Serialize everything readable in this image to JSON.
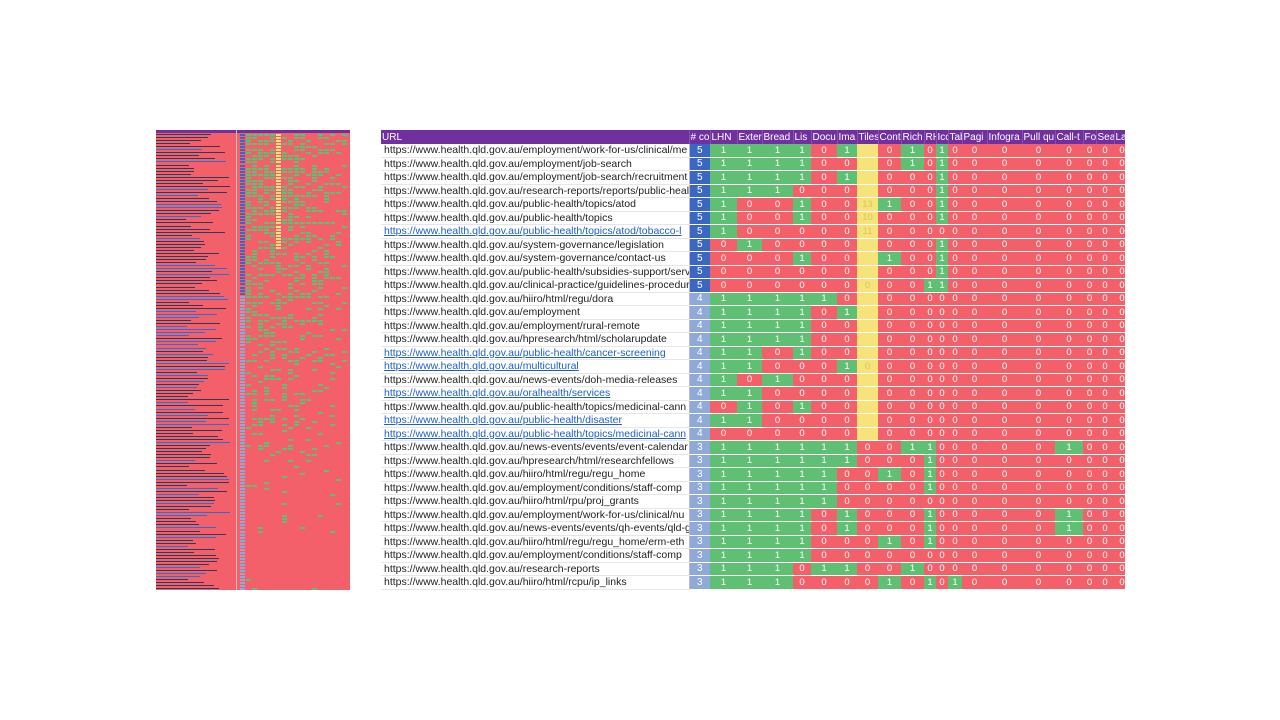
{
  "headers": [
    "URL",
    "# co",
    "LHN",
    "Exter",
    "Bread",
    "Lis",
    "Docu",
    "Ima",
    "Tiles",
    "Cont",
    "Rich",
    "RH",
    "Icc",
    "Tab",
    "Pagi",
    "Infogra",
    "Pull qu",
    "Call-t",
    "Fo",
    "Sear",
    "Lab"
  ],
  "colors": {
    "header": "#7030a0",
    "green": "#5fbf72",
    "red": "#f4606a",
    "yellow": "#f6e37a",
    "count_dark": "#3b67c4",
    "count_light": "#8fa9d9"
  },
  "rows": [
    {
      "url": "https://www.health.qld.gov.au/employment/work-for-us/clinical/me",
      "count": "5",
      "link": false,
      "vals": [
        "1",
        "1",
        "1",
        "1",
        "0",
        "1",
        "",
        "0",
        "1",
        "0",
        "1",
        "0",
        "0",
        "0",
        "0",
        "0",
        "0",
        "0",
        "0",
        "0"
      ]
    },
    {
      "url": "https://www.health.qld.gov.au/employment/job-search",
      "count": "5",
      "link": false,
      "vals": [
        "1",
        "1",
        "1",
        "1",
        "0",
        "0",
        "",
        "0",
        "1",
        "0",
        "1",
        "0",
        "0",
        "0",
        "0",
        "0",
        "0",
        "0",
        "0",
        "0"
      ]
    },
    {
      "url": "https://www.health.qld.gov.au/employment/job-search/recruitment",
      "count": "5",
      "link": false,
      "vals": [
        "1",
        "1",
        "1",
        "1",
        "0",
        "1",
        "",
        "0",
        "0",
        "0",
        "1",
        "0",
        "0",
        "0",
        "0",
        "0",
        "0",
        "0",
        "0",
        "0"
      ]
    },
    {
      "url": "https://www.health.qld.gov.au/research-reports/reports/public-heal",
      "count": "5",
      "link": false,
      "vals": [
        "1",
        "1",
        "1",
        "0",
        "0",
        "0",
        "",
        "0",
        "0",
        "0",
        "1",
        "0",
        "0",
        "0",
        "0",
        "0",
        "0",
        "0",
        "0",
        "0"
      ]
    },
    {
      "url": "https://www.health.qld.gov.au/public-health/topics/atod",
      "count": "5",
      "link": false,
      "vals": [
        "1",
        "0",
        "0",
        "1",
        "0",
        "0",
        "13",
        "1",
        "0",
        "0",
        "1",
        "0",
        "0",
        "0",
        "0",
        "0",
        "0",
        "0",
        "0",
        "0"
      ]
    },
    {
      "url": "https://www.health.qld.gov.au/public-health/topics",
      "count": "5",
      "link": false,
      "vals": [
        "1",
        "0",
        "0",
        "1",
        "0",
        "0",
        "10",
        "0",
        "0",
        "0",
        "1",
        "0",
        "0",
        "0",
        "0",
        "0",
        "0",
        "0",
        "0",
        "0"
      ]
    },
    {
      "url": "https://www.health.qld.gov.au/public-health/topics/atod/tobacco-l",
      "count": "5",
      "link": true,
      "vals": [
        "1",
        "0",
        "0",
        "0",
        "0",
        "0",
        "11",
        "0",
        "0",
        "0",
        "0",
        "0",
        "0",
        "0",
        "0",
        "0",
        "0",
        "0",
        "0",
        "0"
      ]
    },
    {
      "url": "https://www.health.qld.gov.au/system-governance/legislation",
      "count": "5",
      "link": false,
      "vals": [
        "0",
        "1",
        "0",
        "0",
        "0",
        "0",
        "",
        "0",
        "0",
        "0",
        "1",
        "0",
        "0",
        "0",
        "0",
        "0",
        "0",
        "0",
        "0",
        "0"
      ]
    },
    {
      "url": "https://www.health.qld.gov.au/system-governance/contact-us",
      "count": "5",
      "link": false,
      "vals": [
        "0",
        "0",
        "0",
        "1",
        "0",
        "0",
        "",
        "1",
        "0",
        "0",
        "1",
        "0",
        "0",
        "0",
        "0",
        "0",
        "0",
        "0",
        "0",
        "0"
      ]
    },
    {
      "url": "https://www.health.qld.gov.au/public-health/subsidies-support/serv",
      "count": "5",
      "link": false,
      "vals": [
        "0",
        "0",
        "0",
        "0",
        "0",
        "0",
        "",
        "0",
        "0",
        "0",
        "1",
        "0",
        "0",
        "0",
        "0",
        "0",
        "0",
        "0",
        "0",
        "0"
      ]
    },
    {
      "url": "https://www.health.qld.gov.au/clinical-practice/guidelines-procedur",
      "count": "5",
      "link": false,
      "vals": [
        "0",
        "0",
        "0",
        "0",
        "0",
        "0",
        "0",
        "0",
        "0",
        "1",
        "1",
        "0",
        "0",
        "0",
        "0",
        "0",
        "0",
        "0",
        "0",
        "0"
      ]
    },
    {
      "url": "https://www.health.qld.gov.au/hiiro/html/regu/dora",
      "count": "4",
      "link": false,
      "vals": [
        "1",
        "1",
        "1",
        "1",
        "1",
        "0",
        "",
        "0",
        "0",
        "0",
        "0",
        "0",
        "0",
        "0",
        "0",
        "0",
        "0",
        "0",
        "0",
        "0"
      ]
    },
    {
      "url": "https://www.health.qld.gov.au/employment",
      "count": "4",
      "link": false,
      "vals": [
        "1",
        "1",
        "1",
        "1",
        "0",
        "1",
        "",
        "0",
        "0",
        "0",
        "0",
        "0",
        "0",
        "0",
        "0",
        "0",
        "0",
        "0",
        "0",
        "0"
      ]
    },
    {
      "url": "https://www.health.qld.gov.au/employment/rural-remote",
      "count": "4",
      "link": false,
      "vals": [
        "1",
        "1",
        "1",
        "1",
        "0",
        "0",
        "",
        "0",
        "0",
        "0",
        "0",
        "0",
        "0",
        "0",
        "0",
        "0",
        "0",
        "0",
        "0",
        "0"
      ]
    },
    {
      "url": "https://www.health.qld.gov.au/hpresearch/html/scholarupdate",
      "count": "4",
      "link": false,
      "vals": [
        "1",
        "1",
        "1",
        "1",
        "0",
        "0",
        "",
        "0",
        "0",
        "0",
        "0",
        "0",
        "0",
        "0",
        "0",
        "0",
        "0",
        "0",
        "0",
        "0"
      ]
    },
    {
      "url": "https://www.health.qld.gov.au/public-health/cancer-screening",
      "count": "4",
      "link": true,
      "vals": [
        "1",
        "1",
        "0",
        "1",
        "0",
        "0",
        "",
        "0",
        "0",
        "0",
        "0",
        "0",
        "0",
        "0",
        "0",
        "0",
        "0",
        "0",
        "0",
        "0"
      ]
    },
    {
      "url": "https://www.health.qld.gov.au/multicultural",
      "count": "4",
      "link": true,
      "vals": [
        "1",
        "1",
        "0",
        "0",
        "0",
        "1",
        "0",
        "0",
        "0",
        "0",
        "0",
        "0",
        "0",
        "0",
        "0",
        "0",
        "0",
        "0",
        "0",
        "0"
      ]
    },
    {
      "url": "https://www.health.qld.gov.au/news-events/doh-media-releases",
      "count": "4",
      "link": false,
      "vals": [
        "1",
        "0",
        "1",
        "0",
        "0",
        "0",
        "",
        "0",
        "0",
        "0",
        "0",
        "0",
        "0",
        "0",
        "0",
        "0",
        "0",
        "0",
        "0",
        "0"
      ]
    },
    {
      "url": "https://www.health.qld.gov.au/oralhealth/services",
      "count": "4",
      "link": true,
      "vals": [
        "1",
        "1",
        "0",
        "0",
        "0",
        "0",
        "",
        "0",
        "0",
        "0",
        "0",
        "0",
        "0",
        "0",
        "0",
        "0",
        "0",
        "0",
        "0",
        "0"
      ]
    },
    {
      "url": "https://www.health.qld.gov.au/public-health/topics/medicinal-cann",
      "count": "4",
      "link": false,
      "vals": [
        "0",
        "1",
        "0",
        "1",
        "0",
        "0",
        "",
        "0",
        "0",
        "0",
        "0",
        "0",
        "0",
        "0",
        "0",
        "0",
        "0",
        "0",
        "0",
        "0"
      ]
    },
    {
      "url": "https://www.health.qld.gov.au/public-health/disaster",
      "count": "4",
      "link": true,
      "vals": [
        "1",
        "1",
        "0",
        "0",
        "0",
        "0",
        "",
        "0",
        "0",
        "0",
        "0",
        "0",
        "0",
        "0",
        "0",
        "0",
        "0",
        "0",
        "0",
        "0"
      ]
    },
    {
      "url": "https://www.health.qld.gov.au/public-health/topics/medicinal-cann",
      "count": "4",
      "link": true,
      "vals": [
        "0",
        "0",
        "0",
        "0",
        "0",
        "0",
        "",
        "0",
        "0",
        "0",
        "0",
        "0",
        "0",
        "0",
        "0",
        "0",
        "0",
        "0",
        "0",
        "0"
      ]
    },
    {
      "url": "https://www.health.qld.gov.au/news-events/events/event-calendar",
      "count": "3",
      "link": false,
      "vals": [
        "1",
        "1",
        "1",
        "1",
        "1",
        "1",
        "0",
        "0",
        "1",
        "1",
        "0",
        "0",
        "0",
        "0",
        "0",
        "1",
        "0",
        "0",
        "0",
        "0"
      ]
    },
    {
      "url": "https://www.health.qld.gov.au/hpresearch/html/researchfellows",
      "count": "3",
      "link": false,
      "vals": [
        "1",
        "1",
        "1",
        "1",
        "1",
        "1",
        "0",
        "0",
        "0",
        "1",
        "0",
        "0",
        "0",
        "0",
        "0",
        "0",
        "0",
        "0",
        "0",
        "0"
      ]
    },
    {
      "url": "https://www.health.qld.gov.au/hiiro/html/regu/regu_home",
      "count": "3",
      "link": false,
      "vals": [
        "1",
        "1",
        "1",
        "1",
        "1",
        "0",
        "0",
        "1",
        "0",
        "1",
        "0",
        "0",
        "0",
        "0",
        "0",
        "0",
        "0",
        "0",
        "0",
        "0"
      ]
    },
    {
      "url": "https://www.health.qld.gov.au/employment/conditions/staff-comp",
      "count": "3",
      "link": false,
      "vals": [
        "1",
        "1",
        "1",
        "1",
        "1",
        "0",
        "0",
        "0",
        "0",
        "1",
        "0",
        "0",
        "0",
        "0",
        "0",
        "0",
        "0",
        "0",
        "0",
        "0"
      ]
    },
    {
      "url": "https://www.health.qld.gov.au/hiiro/html/rpu/proj_grants",
      "count": "3",
      "link": false,
      "vals": [
        "1",
        "1",
        "1",
        "1",
        "1",
        "0",
        "0",
        "0",
        "0",
        "0",
        "0",
        "0",
        "0",
        "0",
        "0",
        "0",
        "0",
        "0",
        "0",
        "0"
      ]
    },
    {
      "url": "https://www.health.qld.gov.au/employment/work-for-us/clinical/nu",
      "count": "3",
      "link": false,
      "vals": [
        "1",
        "1",
        "1",
        "1",
        "0",
        "1",
        "0",
        "0",
        "0",
        "1",
        "0",
        "0",
        "0",
        "0",
        "0",
        "1",
        "0",
        "0",
        "0",
        "0"
      ]
    },
    {
      "url": "https://www.health.qld.gov.au/news-events/events/qh-events/qld-g",
      "count": "3",
      "link": false,
      "vals": [
        "1",
        "1",
        "1",
        "1",
        "0",
        "1",
        "0",
        "0",
        "0",
        "1",
        "0",
        "0",
        "0",
        "0",
        "0",
        "1",
        "0",
        "0",
        "0",
        "0"
      ]
    },
    {
      "url": "https://www.health.qld.gov.au/hiiro/html/regu/regu_home/erm-eth",
      "count": "3",
      "link": false,
      "vals": [
        "1",
        "1",
        "1",
        "1",
        "0",
        "0",
        "0",
        "1",
        "0",
        "1",
        "0",
        "0",
        "0",
        "0",
        "0",
        "0",
        "0",
        "0",
        "0",
        "0"
      ]
    },
    {
      "url": "https://www.health.qld.gov.au/employment/conditions/staff-comp",
      "count": "3",
      "link": false,
      "vals": [
        "1",
        "1",
        "1",
        "1",
        "0",
        "0",
        "0",
        "0",
        "0",
        "0",
        "0",
        "0",
        "0",
        "0",
        "0",
        "0",
        "0",
        "0",
        "0",
        "0"
      ]
    },
    {
      "url": "https://www.health.qld.gov.au/research-reports",
      "count": "3",
      "link": false,
      "vals": [
        "1",
        "1",
        "1",
        "0",
        "1",
        "1",
        "0",
        "0",
        "1",
        "0",
        "0",
        "0",
        "0",
        "0",
        "0",
        "0",
        "0",
        "0",
        "0",
        "0"
      ]
    },
    {
      "url": "https://www.health.qld.gov.au/hiiro/html/rcpu/ip_links",
      "count": "3",
      "link": false,
      "vals": [
        "1",
        "1",
        "1",
        "0",
        "0",
        "0",
        "0",
        "1",
        "0",
        "1",
        "0",
        "1",
        "0",
        "0",
        "0",
        "0",
        "0",
        "0",
        "0",
        "0"
      ]
    }
  ]
}
